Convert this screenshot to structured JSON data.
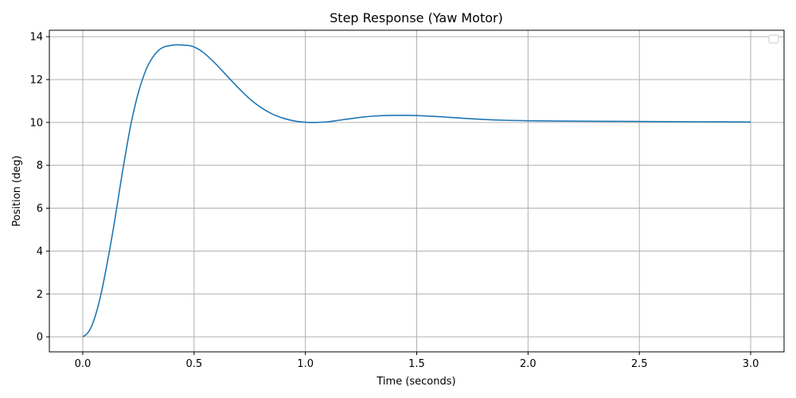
{
  "chart_data": {
    "type": "line",
    "title": "Step Response (Yaw Motor)",
    "xlabel": "Time (seconds)",
    "ylabel": "Position (deg)",
    "xlim": [
      -0.15,
      3.15
    ],
    "ylim": [
      -0.7,
      14.3
    ],
    "xticks": [
      0,
      0.5,
      1,
      1.5,
      2,
      2.5,
      3
    ],
    "xtick_labels": [
      "0.0",
      "0.5",
      "1.0",
      "1.5",
      "2.0",
      "2.5",
      "3.0"
    ],
    "yticks": [
      0,
      2,
      4,
      6,
      8,
      10,
      12,
      14
    ],
    "ytick_labels": [
      "0",
      "2",
      "4",
      "6",
      "8",
      "10",
      "12",
      "14"
    ],
    "grid": true,
    "legend": "top-right",
    "series": [
      {
        "color": "#1f77b4",
        "x": [
          0,
          0.02,
          0.04,
          0.06,
          0.08,
          0.1,
          0.12,
          0.14,
          0.16,
          0.18,
          0.2,
          0.22,
          0.25,
          0.28,
          0.3,
          0.33,
          0.36,
          0.4,
          0.43,
          0.46,
          0.48,
          0.5,
          0.53,
          0.56,
          0.6,
          0.65,
          0.7,
          0.75,
          0.8,
          0.85,
          0.9,
          0.95,
          1.0,
          1.05,
          1.1,
          1.15,
          1.2,
          1.25,
          1.3,
          1.35,
          1.4,
          1.45,
          1.5,
          1.6,
          1.7,
          1.8,
          1.9,
          2.0,
          2.2,
          2.4,
          2.6,
          2.8,
          3.0
        ],
        "y": [
          0,
          0.15,
          0.5,
          1.1,
          1.9,
          2.9,
          4.0,
          5.2,
          6.5,
          7.8,
          9.0,
          10.1,
          11.4,
          12.35,
          12.8,
          13.25,
          13.5,
          13.6,
          13.62,
          13.6,
          13.58,
          13.52,
          13.35,
          13.1,
          12.7,
          12.15,
          11.6,
          11.1,
          10.7,
          10.4,
          10.2,
          10.07,
          10.01,
          10.0,
          10.03,
          10.1,
          10.17,
          10.24,
          10.29,
          10.32,
          10.33,
          10.33,
          10.32,
          10.27,
          10.2,
          10.14,
          10.1,
          10.08,
          10.06,
          10.05,
          10.04,
          10.03,
          10.02
        ]
      }
    ]
  }
}
